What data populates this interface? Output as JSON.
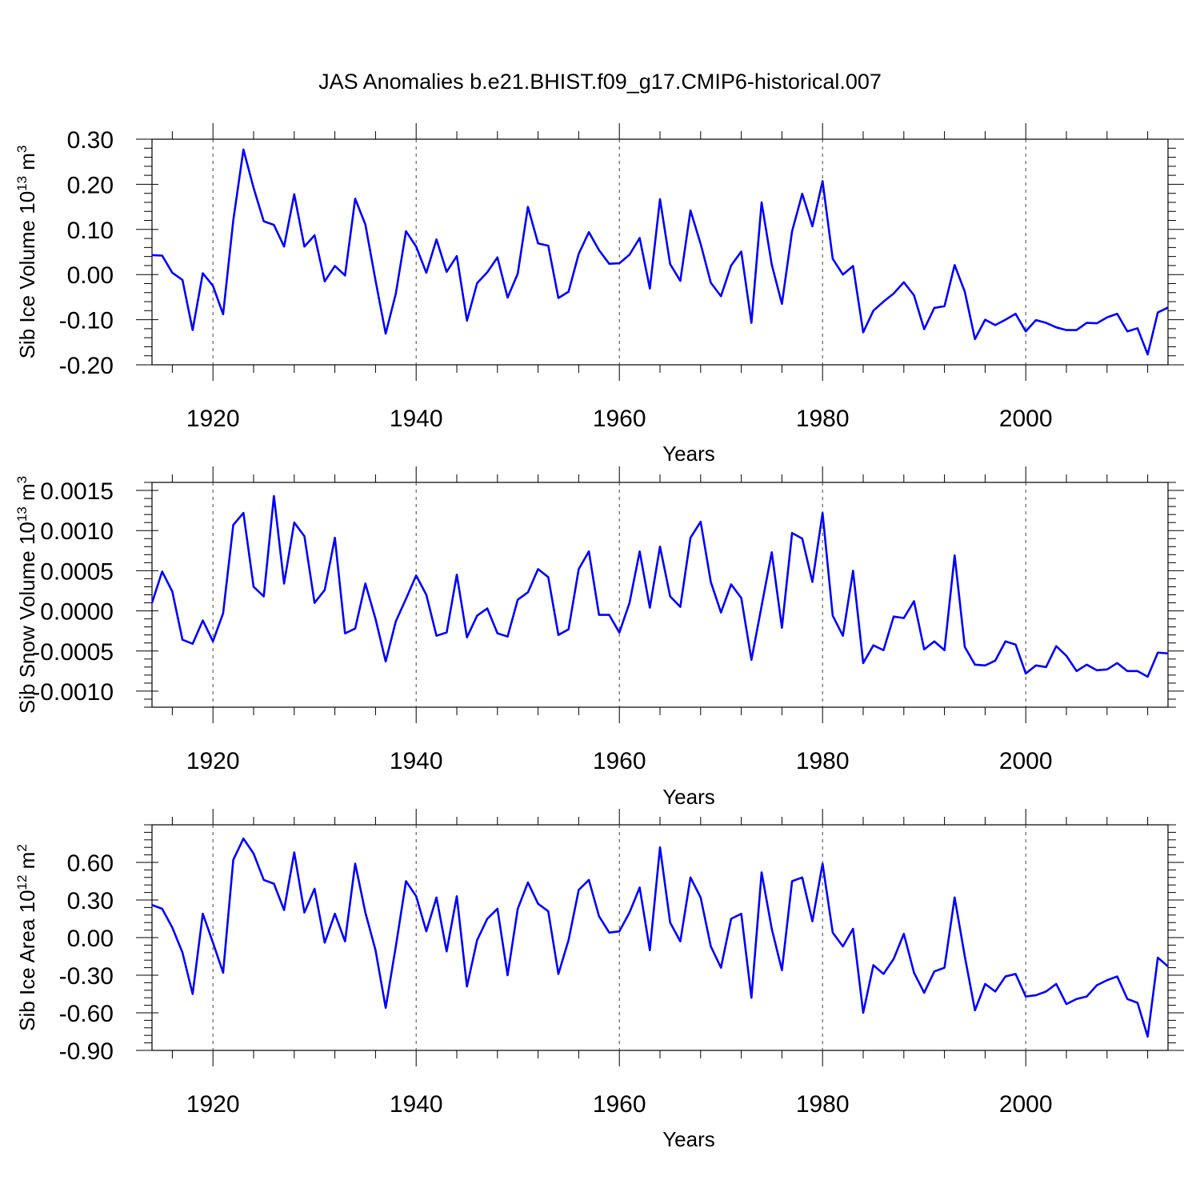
{
  "figure": {
    "title": "JAS Anomalies b.e21.BHIST.f09_g17.CMIP6-historical.007",
    "line_color": "#0000ff"
  },
  "chart_data": [
    {
      "type": "line",
      "title": "JAS Anomalies b.e21.BHIST.f09_g17.CMIP6-historical.007",
      "xlabel": "Years",
      "ylabel_main": "Sib Ice Volume 10",
      "ylabel_exp": "13",
      "ylabel_unit": " m",
      "ylabel_unit_exp": "3",
      "xlim": [
        1914,
        2014
      ],
      "ylim": [
        -0.2,
        0.3
      ],
      "xticks": [
        1920,
        1940,
        1960,
        1980,
        2000
      ],
      "xtick_labels": [
        "1920",
        "1940",
        "1960",
        "1980",
        "2000"
      ],
      "yticks": [
        -0.2,
        -0.1,
        0.0,
        0.1,
        0.2,
        0.3
      ],
      "ytick_labels": [
        "-0.20",
        "-0.10",
        "0.00",
        "0.10",
        "0.20",
        "0.30"
      ],
      "gridlines_x": "dashed at major x ticks",
      "series": [
        {
          "name": "Sib Ice Volume",
          "x_start": 1914,
          "values": [
            0.043,
            0.042,
            0.004,
            -0.012,
            -0.123,
            0.003,
            -0.025,
            -0.088,
            0.12,
            0.277,
            0.192,
            0.118,
            0.11,
            0.062,
            0.178,
            0.062,
            0.087,
            -0.015,
            0.019,
            -0.002,
            0.168,
            0.111,
            -0.013,
            -0.131,
            -0.042,
            0.096,
            0.062,
            0.004,
            0.078,
            0.006,
            0.041,
            -0.102,
            -0.019,
            0.005,
            0.038,
            -0.051,
            0.002,
            0.15,
            0.069,
            0.064,
            -0.052,
            -0.038,
            0.046,
            0.094,
            0.054,
            0.024,
            0.025,
            0.044,
            0.081,
            -0.031,
            0.167,
            0.023,
            -0.014,
            0.142,
            0.068,
            -0.018,
            -0.048,
            0.02,
            0.051,
            -0.107,
            0.16,
            0.022,
            -0.065,
            0.096,
            0.179,
            0.107,
            0.207,
            0.035,
            0.0,
            0.019,
            -0.128,
            -0.08,
            -0.06,
            -0.042,
            -0.017,
            -0.046,
            -0.121,
            -0.074,
            -0.07,
            0.021,
            -0.038,
            -0.143,
            -0.1,
            -0.112,
            -0.1,
            -0.087,
            -0.126,
            -0.101,
            -0.107,
            -0.117,
            -0.123,
            -0.123,
            -0.107,
            -0.108,
            -0.095,
            -0.087,
            -0.126,
            -0.119,
            -0.177,
            -0.084,
            -0.073
          ]
        }
      ]
    },
    {
      "type": "line",
      "xlabel": "Years",
      "ylabel_main": "Sib Snow Volume 10",
      "ylabel_exp": "13",
      "ylabel_unit": " m",
      "ylabel_unit_exp": "3",
      "xlim": [
        1914,
        2014
      ],
      "ylim": [
        -0.0012,
        0.0016
      ],
      "xticks": [
        1920,
        1940,
        1960,
        1980,
        2000
      ],
      "xtick_labels": [
        "1920",
        "1940",
        "1960",
        "1980",
        "2000"
      ],
      "yticks": [
        -0.001,
        -0.0005,
        0.0,
        0.0005,
        0.001,
        0.0015
      ],
      "ytick_labels": [
        "-0.0010",
        "-0.0005",
        "0.0000",
        "0.0005",
        "0.0010",
        "0.0015"
      ],
      "gridlines_x": "dashed at major x ticks",
      "series": [
        {
          "name": "Sib Snow Volume",
          "x_start": 1914,
          "values": [
            0.0001,
            0.00049,
            0.00024,
            -0.00036,
            -0.00041,
            -0.00012,
            -0.00038,
            -3e-05,
            0.00107,
            0.00122,
            0.0003,
            0.00018,
            0.00143,
            0.00034,
            0.0011,
            0.00093,
            0.0001,
            0.00026,
            0.00091,
            -0.00028,
            -0.00022,
            0.00034,
            -0.0001,
            -0.00063,
            -0.00013,
            0.00015,
            0.00044,
            0.0002,
            -0.00031,
            -0.00027,
            0.00045,
            -0.00033,
            -6e-05,
            3e-05,
            -0.00028,
            -0.00032,
            0.00014,
            0.00023,
            0.00052,
            0.00042,
            -0.0003,
            -0.00023,
            0.00052,
            0.00074,
            -5e-05,
            -5e-05,
            -0.00027,
            0.0001,
            0.00074,
            4e-05,
            0.0008,
            0.00018,
            5e-05,
            0.00091,
            0.00111,
            0.00036,
            -2e-05,
            0.00033,
            0.00016,
            -0.00061,
            6e-05,
            0.00073,
            -0.00021,
            0.00097,
            0.0009,
            0.00036,
            0.00122,
            -6e-05,
            -0.00031,
            0.0005,
            -0.00065,
            -0.00043,
            -0.00049,
            -7e-05,
            -9e-05,
            0.00012,
            -0.00048,
            -0.00038,
            -0.00049,
            0.00069,
            -0.00045,
            -0.00067,
            -0.00068,
            -0.00062,
            -0.00038,
            -0.00042,
            -0.00078,
            -0.00068,
            -0.0007,
            -0.00044,
            -0.00056,
            -0.00075,
            -0.00067,
            -0.00074,
            -0.00073,
            -0.00065,
            -0.00075,
            -0.00075,
            -0.00082,
            -0.00052,
            -0.00053
          ]
        }
      ]
    },
    {
      "type": "line",
      "xlabel": "Years",
      "ylabel_main": "Sib Ice Area 10",
      "ylabel_exp": "12",
      "ylabel_unit": " m",
      "ylabel_unit_exp": "2",
      "xlim": [
        1914,
        2014
      ],
      "ylim": [
        -0.9,
        0.9
      ],
      "xticks": [
        1920,
        1940,
        1960,
        1980,
        2000
      ],
      "xtick_labels": [
        "1920",
        "1940",
        "1960",
        "1980",
        "2000"
      ],
      "yticks": [
        -0.9,
        -0.6,
        -0.3,
        0.0,
        0.3,
        0.6
      ],
      "ytick_labels": [
        "-0.90",
        "-0.60",
        "-0.30",
        "0.00",
        "0.30",
        "0.60"
      ],
      "gridlines_x": "dashed at major x ticks",
      "series": [
        {
          "name": "Sib Ice Area",
          "x_start": 1914,
          "values": [
            0.26,
            0.23,
            0.08,
            -0.12,
            -0.45,
            0.19,
            -0.04,
            -0.28,
            0.62,
            0.79,
            0.67,
            0.46,
            0.43,
            0.22,
            0.68,
            0.2,
            0.39,
            -0.04,
            0.19,
            -0.03,
            0.59,
            0.2,
            -0.1,
            -0.56,
            -0.07,
            0.45,
            0.33,
            0.05,
            0.32,
            -0.11,
            0.33,
            -0.39,
            -0.02,
            0.15,
            0.23,
            -0.3,
            0.23,
            0.44,
            0.27,
            0.21,
            -0.29,
            -0.02,
            0.38,
            0.46,
            0.17,
            0.04,
            0.05,
            0.2,
            0.4,
            -0.1,
            0.72,
            0.12,
            -0.03,
            0.48,
            0.32,
            -0.07,
            -0.24,
            0.15,
            0.19,
            -0.48,
            0.52,
            0.07,
            -0.26,
            0.45,
            0.48,
            0.13,
            0.59,
            0.04,
            -0.07,
            0.07,
            -0.6,
            -0.22,
            -0.29,
            -0.17,
            0.03,
            -0.28,
            -0.44,
            -0.27,
            -0.24,
            0.32,
            -0.15,
            -0.58,
            -0.37,
            -0.43,
            -0.31,
            -0.29,
            -0.47,
            -0.46,
            -0.43,
            -0.37,
            -0.53,
            -0.49,
            -0.47,
            -0.38,
            -0.34,
            -0.31,
            -0.49,
            -0.52,
            -0.79,
            -0.16,
            -0.23
          ]
        }
      ]
    }
  ]
}
